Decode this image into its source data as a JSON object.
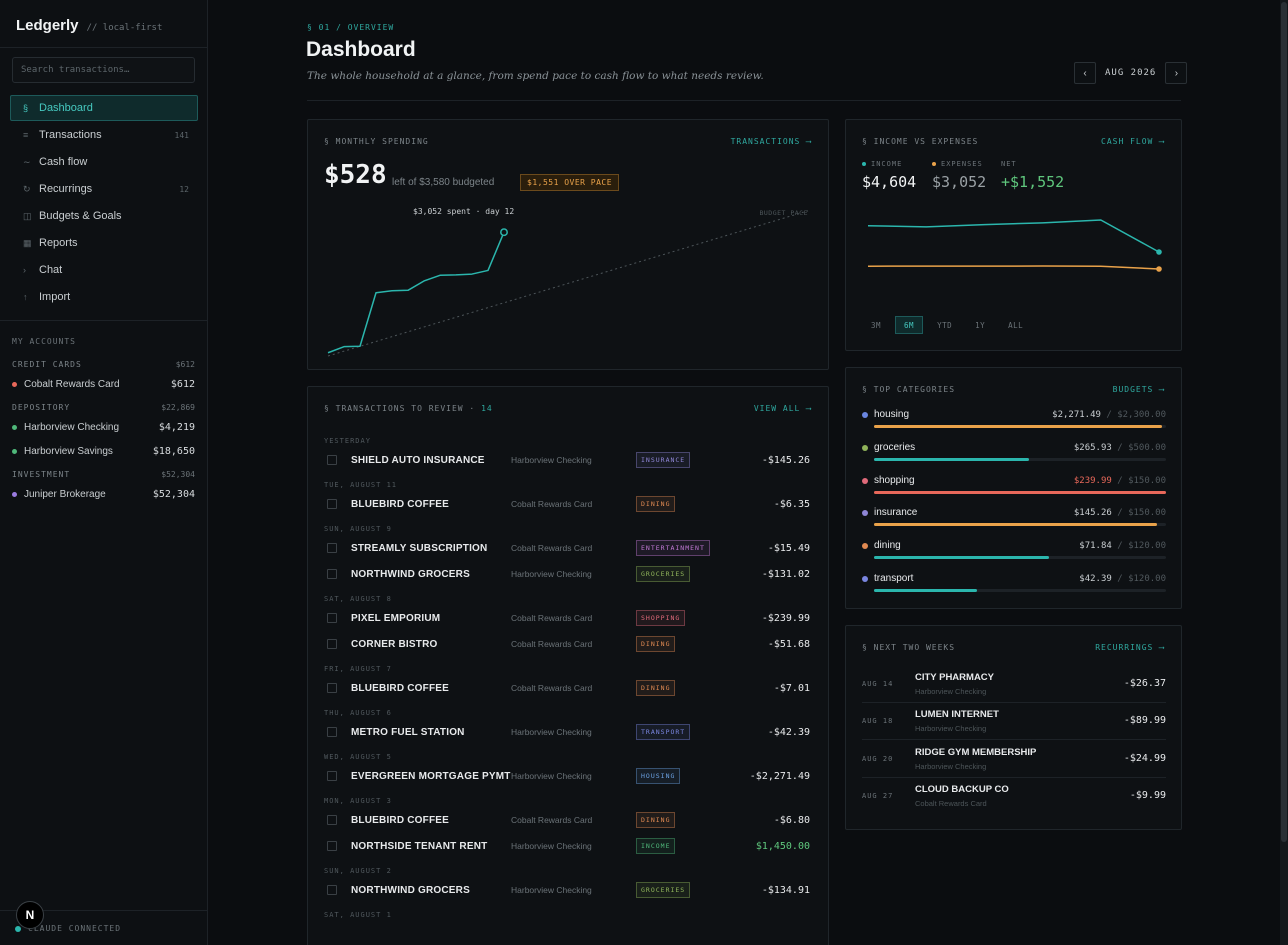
{
  "app": {
    "name": "Ledgerly",
    "tag": "// local-first"
  },
  "search": {
    "placeholder": "Search transactions…"
  },
  "nav": [
    {
      "icon": "§",
      "label": "Dashboard",
      "count": "",
      "active": true
    },
    {
      "icon": "≡",
      "label": "Transactions",
      "count": "141",
      "active": false
    },
    {
      "icon": "∼",
      "label": "Cash flow",
      "count": "",
      "active": false
    },
    {
      "icon": "↻",
      "label": "Recurrings",
      "count": "12",
      "active": false
    },
    {
      "icon": "◫",
      "label": "Budgets & Goals",
      "count": "",
      "active": false
    },
    {
      "icon": "▦",
      "label": "Reports",
      "count": "",
      "active": false
    },
    {
      "icon": "›",
      "label": "Chat",
      "count": "",
      "active": false
    },
    {
      "icon": "↑",
      "label": "Import",
      "count": "",
      "active": false
    }
  ],
  "accounts": {
    "heading": "MY ACCOUNTS",
    "groups": [
      {
        "name": "CREDIT CARDS",
        "total": "$612",
        "items": [
          {
            "name": "Cobalt Rewards Card",
            "balance": "$612",
            "color": "#e8685a"
          }
        ]
      },
      {
        "name": "DEPOSITORY",
        "total": "$22,869",
        "items": [
          {
            "name": "Harborview Checking",
            "balance": "$4,219",
            "color": "#4fb87a"
          },
          {
            "name": "Harborview Savings",
            "balance": "$18,650",
            "color": "#4fb87a"
          }
        ]
      },
      {
        "name": "INVESTMENT",
        "total": "$52,304",
        "items": [
          {
            "name": "Juniper Brokerage",
            "balance": "$52,304",
            "color": "#9a7be0"
          }
        ]
      }
    ]
  },
  "footer": {
    "status": "CLAUDE CONNECTED",
    "avatar": "N"
  },
  "header": {
    "eyebrow": "§ 01 / OVERVIEW",
    "title": "Dashboard",
    "subtitle": "The whole household at a glance, from spend pace to cash flow to what needs review.",
    "month": "AUG 2026",
    "prev": "‹",
    "next": "›"
  },
  "spending": {
    "title": "§ MONTHLY SPENDING",
    "link": "TRANSACTIONS ⟶",
    "left_amount": "$528",
    "budget_text": "left of $3,580 budgeted",
    "pace_badge": "$1,551 OVER PACE",
    "spent_note": "$3,052 spent · day 12",
    "pace_label": "BUDGET PACE"
  },
  "chart_data": [
    {
      "type": "line",
      "title": "MONTHLY SPENDING",
      "series": [
        {
          "name": "spent",
          "x": [
            1,
            2,
            3,
            4,
            5,
            6,
            7,
            8,
            9,
            10,
            11,
            12
          ],
          "values": [
            80,
            230,
            240,
            1560,
            1610,
            1620,
            1850,
            1990,
            2000,
            2020,
            2110,
            3052
          ]
        },
        {
          "name": "budget pace",
          "x": [
            1,
            31
          ],
          "values": [
            0,
            3580
          ]
        }
      ],
      "ylim": [
        0,
        3600
      ]
    },
    {
      "type": "line",
      "title": "INCOME VS EXPENSES",
      "series": [
        {
          "name": "INCOME",
          "values": [
            4650,
            4648,
            4652,
            4655,
            4660,
            4604
          ]
        },
        {
          "name": "EXPENSES",
          "values": [
            3090,
            3092,
            3091,
            3093,
            3090,
            3052
          ]
        }
      ]
    }
  ],
  "cashflow": {
    "title": "§ INCOME VS EXPENSES",
    "link": "CASH FLOW ⟶",
    "income_label": "INCOME",
    "income": "$4,604",
    "expenses_label": "EXPENSES",
    "expenses": "$3,052",
    "net_label": "NET",
    "net": "+$1,552",
    "colors": {
      "income": "#2bb6ad",
      "expenses": "#e9a24a",
      "net": "#5fc77d"
    },
    "ranges": [
      {
        "label": "3M",
        "active": false
      },
      {
        "label": "6M",
        "active": true
      },
      {
        "label": "YTD",
        "active": false
      },
      {
        "label": "1Y",
        "active": false
      },
      {
        "label": "ALL",
        "active": false
      }
    ]
  },
  "review": {
    "title": "§ TRANSACTIONS TO REVIEW ·",
    "count": "14",
    "link": "VIEW ALL ⟶",
    "groups": [
      {
        "day": "YESTERDAY",
        "rows": [
          {
            "merchant": "SHIELD AUTO INSURANCE",
            "account": "Harborview Checking",
            "tag": "INSURANCE",
            "amount": "-$145.26"
          }
        ]
      },
      {
        "day": "TUE, AUGUST 11",
        "rows": [
          {
            "merchant": "BLUEBIRD COFFEE",
            "account": "Cobalt Rewards Card",
            "tag": "DINING",
            "amount": "-$6.35"
          }
        ]
      },
      {
        "day": "SUN, AUGUST 9",
        "rows": [
          {
            "merchant": "STREAMLY SUBSCRIPTION",
            "account": "Cobalt Rewards Card",
            "tag": "ENTERTAINMENT",
            "amount": "-$15.49"
          },
          {
            "merchant": "NORTHWIND GROCERS",
            "account": "Harborview Checking",
            "tag": "GROCERIES",
            "amount": "-$131.02"
          }
        ]
      },
      {
        "day": "SAT, AUGUST 8",
        "rows": [
          {
            "merchant": "PIXEL EMPORIUM",
            "account": "Cobalt Rewards Card",
            "tag": "SHOPPING",
            "amount": "-$239.99"
          },
          {
            "merchant": "CORNER BISTRO",
            "account": "Cobalt Rewards Card",
            "tag": "DINING",
            "amount": "-$51.68"
          }
        ]
      },
      {
        "day": "FRI, AUGUST 7",
        "rows": [
          {
            "merchant": "BLUEBIRD COFFEE",
            "account": "Cobalt Rewards Card",
            "tag": "DINING",
            "amount": "-$7.01"
          }
        ]
      },
      {
        "day": "THU, AUGUST 6",
        "rows": [
          {
            "merchant": "METRO FUEL STATION",
            "account": "Harborview Checking",
            "tag": "TRANSPORT",
            "amount": "-$42.39"
          }
        ]
      },
      {
        "day": "WED, AUGUST 5",
        "rows": [
          {
            "merchant": "EVERGREEN MORTGAGE PYMT",
            "account": "Harborview Checking",
            "tag": "HOUSING",
            "amount": "-$2,271.49"
          }
        ]
      },
      {
        "day": "MON, AUGUST 3",
        "rows": [
          {
            "merchant": "BLUEBIRD COFFEE",
            "account": "Cobalt Rewards Card",
            "tag": "DINING",
            "amount": "-$6.80"
          },
          {
            "merchant": "NORTHSIDE TENANT RENT",
            "account": "Harborview Checking",
            "tag": "INCOME",
            "amount": "$1,450.00"
          }
        ]
      },
      {
        "day": "SUN, AUGUST 2",
        "rows": [
          {
            "merchant": "NORTHWIND GROCERS",
            "account": "Harborview Checking",
            "tag": "GROCERIES",
            "amount": "-$134.91"
          }
        ]
      },
      {
        "day": "SAT, AUGUST 1",
        "rows": []
      }
    ],
    "tag_colors": {
      "INSURANCE": "#8f86d6",
      "DINING": "#e08a52",
      "ENTERTAINMENT": "#c27ad6",
      "GROCERIES": "#8fb35a",
      "SHOPPING": "#e06a7a",
      "TRANSPORT": "#7a86e0",
      "HOUSING": "#6aa0e0",
      "INCOME": "#4fb87a"
    },
    "income_color": "#5fc77d"
  },
  "categories": {
    "title": "§ TOP CATEGORIES",
    "link": "BUDGETS ⟶",
    "items": [
      {
        "name": "housing",
        "spent": "$2,271.49",
        "budget": "$2,300.00",
        "pct": 0.988,
        "dot": "#6a86e0",
        "bar": "#e9a24a",
        "over": false
      },
      {
        "name": "groceries",
        "spent": "$265.93",
        "budget": "$500.00",
        "pct": 0.532,
        "dot": "#8fb35a",
        "bar": "#2bb6ad",
        "over": false
      },
      {
        "name": "shopping",
        "spent": "$239.99",
        "budget": "$150.00",
        "pct": 1.0,
        "dot": "#e06a7a",
        "bar": "#e8685a",
        "over": true
      },
      {
        "name": "insurance",
        "spent": "$145.26",
        "budget": "$150.00",
        "pct": 0.968,
        "dot": "#8f86d6",
        "bar": "#e9a24a",
        "over": false
      },
      {
        "name": "dining",
        "spent": "$71.84",
        "budget": "$120.00",
        "pct": 0.599,
        "dot": "#e08a52",
        "bar": "#2bb6ad",
        "over": false
      },
      {
        "name": "transport",
        "spent": "$42.39",
        "budget": "$120.00",
        "pct": 0.353,
        "dot": "#7a86e0",
        "bar": "#2bb6ad",
        "over": false
      }
    ]
  },
  "upcoming": {
    "title": "§ NEXT TWO WEEKS",
    "link": "RECURRINGS ⟶",
    "items": [
      {
        "date": "AUG 14",
        "name": "CITY PHARMACY",
        "account": "Harborview Checking",
        "amount": "-$26.37"
      },
      {
        "date": "AUG 18",
        "name": "LUMEN INTERNET",
        "account": "Harborview Checking",
        "amount": "-$89.99"
      },
      {
        "date": "AUG 20",
        "name": "RIDGE GYM MEMBERSHIP",
        "account": "Harborview Checking",
        "amount": "-$24.99"
      },
      {
        "date": "AUG 27",
        "name": "CLOUD BACKUP CO",
        "account": "Cobalt Rewards Card",
        "amount": "-$9.99"
      }
    ]
  }
}
